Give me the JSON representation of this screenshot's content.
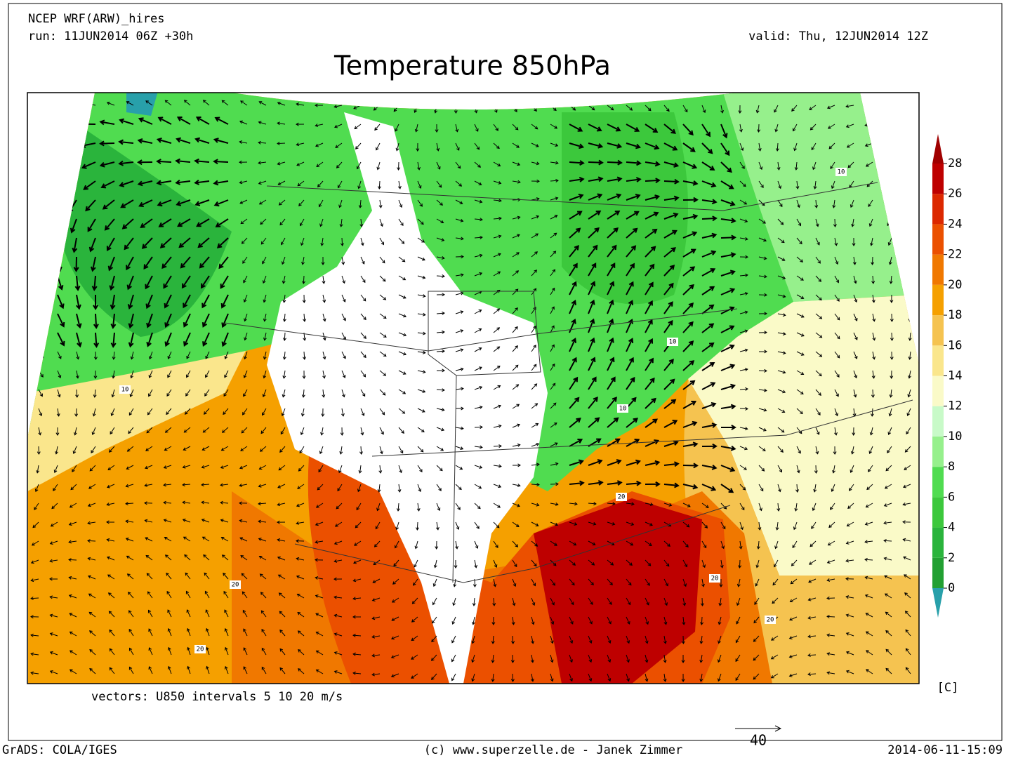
{
  "header": {
    "model": "NCEP WRF(ARW)_hires",
    "run": "run: 11JUN2014 06Z +30h",
    "valid": "valid: Thu, 12JUN2014 12Z",
    "title": "Temperature 850hPa"
  },
  "map": {
    "contour_labels": [
      "10",
      "10",
      "10",
      "10",
      "20",
      "20",
      "20",
      "20",
      "20"
    ]
  },
  "colorbar": {
    "ticks": [
      0,
      2,
      4,
      6,
      8,
      10,
      12,
      14,
      16,
      18,
      20,
      22,
      24,
      26,
      28
    ],
    "colors": [
      "#22a032",
      "#2ab43c",
      "#3cc83c",
      "#50dc50",
      "#96f08c",
      "#c8fac8",
      "#fafac8",
      "#fae68c",
      "#f5c350",
      "#f5a000",
      "#f07800",
      "#eb5000",
      "#dc2800",
      "#be0000"
    ],
    "under_color": "#28a0aa",
    "over_color": "#a00000",
    "unit": "[C]"
  },
  "vectors_note": "vectors: U850 intervals 5 10 20 m/s",
  "reference_vector": "40",
  "footer": {
    "left": "GrADS: COLA/IGES",
    "center": "(c) www.superzelle.de - Janek Zimmer",
    "right": "2014-06-11-15:09"
  }
}
